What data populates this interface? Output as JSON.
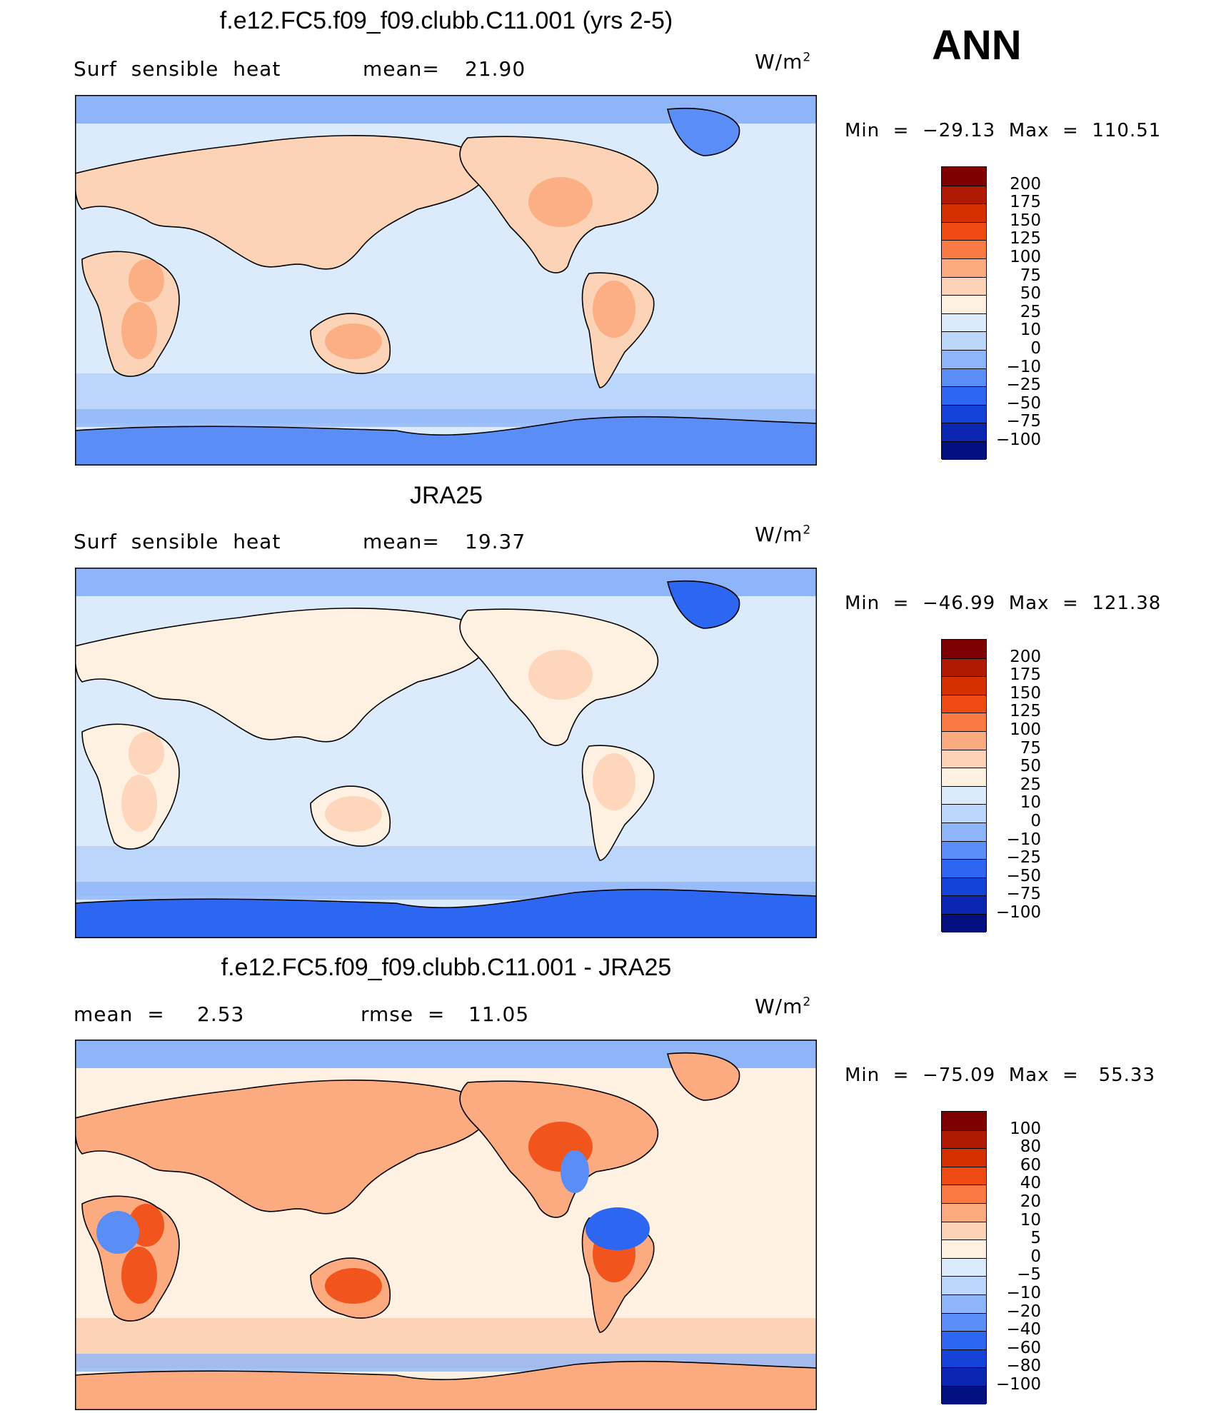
{
  "header": {
    "season": "ANN"
  },
  "panels": [
    {
      "title": "f.e12.FC5.f09_f09.clubb.C11.001 (yrs 2-5)",
      "left_label": "Surf  sensible  heat",
      "stat_label": "mean=",
      "stat_value": "21.90",
      "units": "W/m",
      "units_sup": "2",
      "min_max": "Min  =  −29.13  Max  =  110.51",
      "colorbar": {
        "labels": [
          "200",
          "175",
          "150",
          "125",
          "100",
          "75",
          "50",
          "25",
          "10",
          "0",
          "−10",
          "−25",
          "−50",
          "−75",
          "−100"
        ],
        "colors": [
          "#7f0000",
          "#b01a00",
          "#d53000",
          "#f04a13",
          "#fa7a45",
          "#fcaa7f",
          "#fdd3b8",
          "#fff1e2",
          "#dcebfc",
          "#bcd6fb",
          "#8eb5fa",
          "#5a8df5",
          "#2d66f0",
          "#1542d8",
          "#0a26b3",
          "#040f80"
        ]
      }
    },
    {
      "title": "JRA25",
      "left_label": "Surf  sensible  heat",
      "stat_label": "mean=",
      "stat_value": "19.37",
      "units": "W/m",
      "units_sup": "2",
      "min_max": "Min  =  −46.99  Max  =  121.38",
      "colorbar": {
        "labels": [
          "200",
          "175",
          "150",
          "125",
          "100",
          "75",
          "50",
          "25",
          "10",
          "0",
          "−10",
          "−25",
          "−50",
          "−75",
          "−100"
        ],
        "colors": [
          "#7f0000",
          "#b01a00",
          "#d53000",
          "#f04a13",
          "#fa7a45",
          "#fcaa7f",
          "#fdd3b8",
          "#fff1e2",
          "#dcebfc",
          "#bcd6fb",
          "#8eb5fa",
          "#5a8df5",
          "#2d66f0",
          "#1542d8",
          "#0a26b3",
          "#040f80"
        ]
      }
    },
    {
      "title": "f.e12.FC5.f09_f09.clubb.C11.001 - JRA25",
      "left_label": "mean  =",
      "left_value": "2.53",
      "stat_label": "rmse  =",
      "stat_value": "11.05",
      "units": "W/m",
      "units_sup": "2",
      "min_max": "Min  =  −75.09  Max  =   55.33",
      "colorbar": {
        "labels": [
          "100",
          "80",
          "60",
          "40",
          "20",
          "10",
          "5",
          "0",
          "−5",
          "−10",
          "−20",
          "−40",
          "−60",
          "−80",
          "−100"
        ],
        "colors": [
          "#7f0000",
          "#b01a00",
          "#d53000",
          "#f04a13",
          "#fa7a45",
          "#fcaa7f",
          "#fdd3b8",
          "#fff1e2",
          "#dcebfc",
          "#bcd6fb",
          "#8eb5fa",
          "#5a8df5",
          "#2d66f0",
          "#1542d8",
          "#0a26b3",
          "#040f80"
        ]
      }
    }
  ],
  "chart_data": [
    {
      "type": "heatmap",
      "title": "f.e12.FC5.f09_f09.clubb.C11.001 (yrs 2-5)",
      "variable": "Surf  sensible  heat",
      "mean": 21.9,
      "min": -29.13,
      "max": 110.51,
      "units": "W/m2",
      "levels": [
        -100,
        -75,
        -50,
        -25,
        -10,
        0,
        10,
        25,
        50,
        75,
        100,
        125,
        150,
        175,
        200
      ]
    },
    {
      "type": "heatmap",
      "title": "JRA25",
      "variable": "Surf  sensible  heat",
      "mean": 19.37,
      "min": -46.99,
      "max": 121.38,
      "units": "W/m2",
      "levels": [
        -100,
        -75,
        -50,
        -25,
        -10,
        0,
        10,
        25,
        50,
        75,
        100,
        125,
        150,
        175,
        200
      ]
    },
    {
      "type": "heatmap",
      "title": "f.e12.FC5.f09_f09.clubb.C11.001 - JRA25",
      "mean": 2.53,
      "rmse": 11.05,
      "min": -75.09,
      "max": 55.33,
      "units": "W/m2",
      "levels": [
        -100,
        -80,
        -60,
        -40,
        -20,
        -10,
        -5,
        0,
        5,
        10,
        20,
        40,
        60,
        80,
        100
      ]
    }
  ]
}
